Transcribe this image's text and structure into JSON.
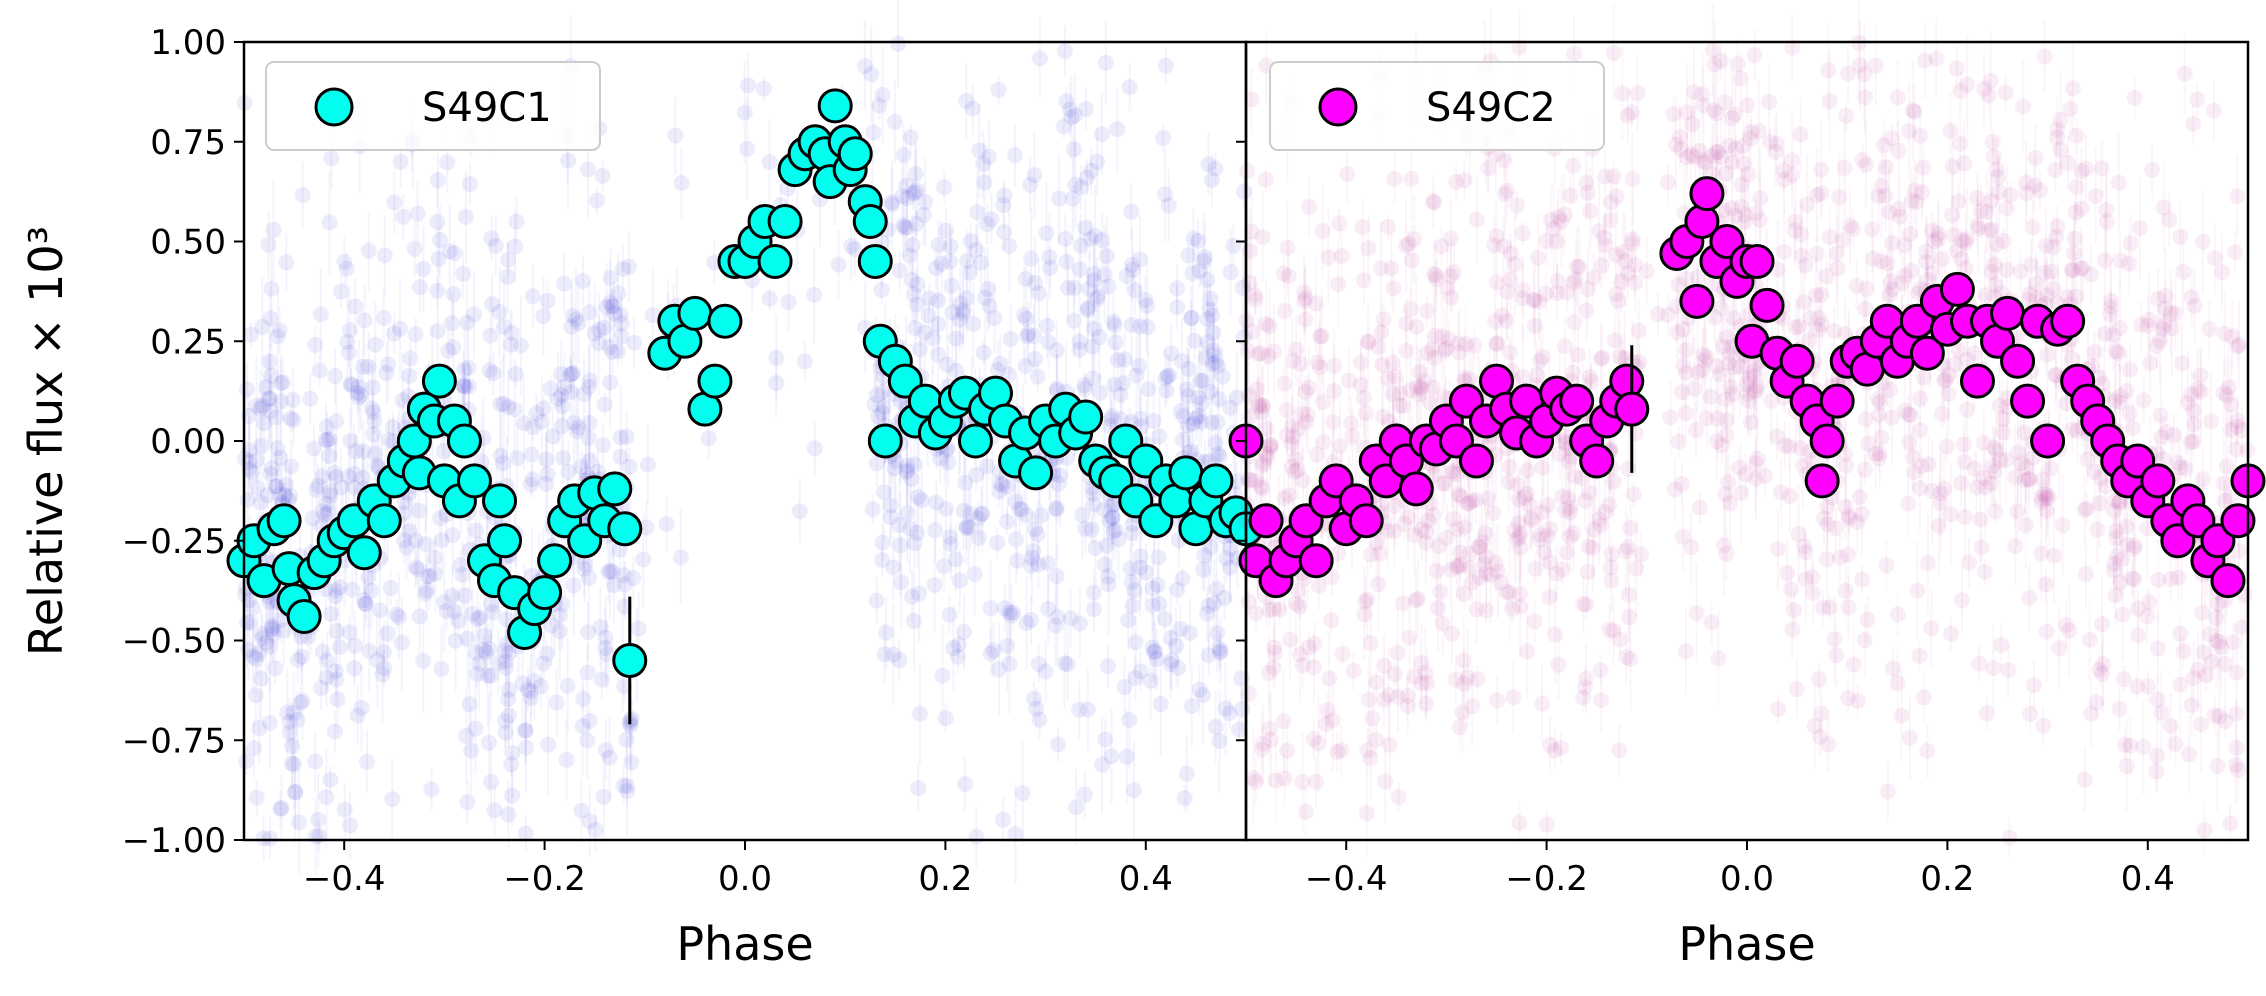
{
  "chart_data": [
    {
      "type": "scatter",
      "panel": "left",
      "xlabel": "Phase",
      "ylabel": "Relative flux × 10³",
      "xlim": [
        -0.5,
        0.5
      ],
      "ylim": [
        -1.0,
        1.0
      ],
      "xticks": [
        "−0.4",
        "−0.2",
        "0.0",
        "0.2",
        "0.4"
      ],
      "xtick_values": [
        -0.4,
        -0.2,
        0.0,
        0.2,
        0.4
      ],
      "yticks": [
        "−1.00",
        "−0.75",
        "−0.50",
        "−0.25",
        "0.00",
        "0.25",
        "0.50",
        "0.75",
        "1.00"
      ],
      "ytick_values": [
        -1.0,
        -0.75,
        -0.5,
        -0.25,
        0.0,
        0.25,
        0.5,
        0.75,
        1.0
      ],
      "legend": "top-left",
      "series": [
        {
          "name": "S49C1",
          "color": "#00ffee",
          "raw_color": "#2b2bd6",
          "x": [
            -0.5,
            -0.49,
            -0.48,
            -0.47,
            -0.46,
            -0.455,
            -0.45,
            -0.44,
            -0.43,
            -0.42,
            -0.41,
            -0.4,
            -0.39,
            -0.38,
            -0.37,
            -0.36,
            -0.35,
            -0.34,
            -0.33,
            -0.325,
            -0.32,
            -0.31,
            -0.305,
            -0.3,
            -0.29,
            -0.285,
            -0.28,
            -0.27,
            -0.26,
            -0.25,
            -0.245,
            -0.24,
            -0.23,
            -0.22,
            -0.21,
            -0.2,
            -0.19,
            -0.18,
            -0.17,
            -0.16,
            -0.15,
            -0.14,
            -0.13,
            -0.12,
            -0.115,
            -0.08,
            -0.07,
            -0.06,
            -0.05,
            -0.04,
            -0.03,
            -0.02,
            -0.01,
            0.0,
            0.01,
            0.02,
            0.03,
            0.04,
            0.05,
            0.06,
            0.07,
            0.08,
            0.085,
            0.09,
            0.1,
            0.105,
            0.11,
            0.12,
            0.125,
            0.13,
            0.135,
            0.14,
            0.15,
            0.16,
            0.17,
            0.18,
            0.19,
            0.2,
            0.21,
            0.22,
            0.23,
            0.24,
            0.25,
            0.26,
            0.27,
            0.28,
            0.29,
            0.3,
            0.31,
            0.32,
            0.33,
            0.34,
            0.35,
            0.36,
            0.37,
            0.38,
            0.39,
            0.4,
            0.41,
            0.42,
            0.43,
            0.44,
            0.45,
            0.46,
            0.47,
            0.48,
            0.49,
            0.5
          ],
          "y": [
            -0.3,
            -0.25,
            -0.35,
            -0.22,
            -0.2,
            -0.32,
            -0.4,
            -0.44,
            -0.33,
            -0.3,
            -0.25,
            -0.23,
            -0.2,
            -0.28,
            -0.15,
            -0.2,
            -0.1,
            -0.05,
            0.0,
            -0.08,
            0.08,
            0.05,
            0.15,
            -0.1,
            0.05,
            -0.15,
            0.0,
            -0.1,
            -0.3,
            -0.35,
            -0.15,
            -0.25,
            -0.38,
            -0.48,
            -0.42,
            -0.38,
            -0.3,
            -0.2,
            -0.15,
            -0.25,
            -0.13,
            -0.2,
            -0.12,
            -0.22,
            -0.55,
            0.22,
            0.3,
            0.25,
            0.32,
            0.08,
            0.15,
            0.3,
            0.45,
            0.45,
            0.5,
            0.55,
            0.45,
            0.55,
            0.68,
            0.72,
            0.75,
            0.72,
            0.65,
            0.84,
            0.75,
            0.68,
            0.72,
            0.6,
            0.55,
            0.45,
            0.25,
            0.0,
            0.2,
            0.15,
            0.05,
            0.1,
            0.02,
            0.05,
            0.1,
            0.12,
            0.0,
            0.08,
            0.12,
            0.05,
            -0.05,
            0.02,
            -0.08,
            0.05,
            0.0,
            0.08,
            0.02,
            0.06,
            -0.05,
            -0.08,
            -0.1,
            0.0,
            -0.15,
            -0.05,
            -0.2,
            -0.1,
            -0.15,
            -0.08,
            -0.22,
            -0.15,
            -0.1,
            -0.2,
            -0.18,
            -0.22
          ]
        }
      ]
    },
    {
      "type": "scatter",
      "panel": "right",
      "xlabel": "Phase",
      "xlim": [
        -0.5,
        0.5
      ],
      "ylim": [
        -1.0,
        1.0
      ],
      "xticks": [
        "−0.4",
        "−0.2",
        "0.0",
        "0.2",
        "0.4"
      ],
      "xtick_values": [
        -0.4,
        -0.2,
        0.0,
        0.2,
        0.4
      ],
      "legend": "top-left",
      "series": [
        {
          "name": "S49C2",
          "color": "#ff00ff",
          "raw_color": "#b8329e",
          "x": [
            -0.5,
            -0.49,
            -0.48,
            -0.47,
            -0.46,
            -0.45,
            -0.44,
            -0.43,
            -0.42,
            -0.41,
            -0.4,
            -0.39,
            -0.38,
            -0.37,
            -0.36,
            -0.35,
            -0.34,
            -0.33,
            -0.32,
            -0.31,
            -0.3,
            -0.29,
            -0.28,
            -0.27,
            -0.26,
            -0.25,
            -0.24,
            -0.23,
            -0.22,
            -0.21,
            -0.2,
            -0.19,
            -0.18,
            -0.17,
            -0.16,
            -0.15,
            -0.14,
            -0.13,
            -0.12,
            -0.115,
            -0.07,
            -0.06,
            -0.05,
            -0.045,
            -0.04,
            -0.03,
            -0.02,
            -0.01,
            0.0,
            0.005,
            0.01,
            0.02,
            0.03,
            0.04,
            0.05,
            0.06,
            0.07,
            0.075,
            0.08,
            0.09,
            0.1,
            0.11,
            0.12,
            0.13,
            0.14,
            0.15,
            0.16,
            0.17,
            0.18,
            0.19,
            0.2,
            0.21,
            0.22,
            0.23,
            0.24,
            0.25,
            0.26,
            0.27,
            0.28,
            0.29,
            0.3,
            0.31,
            0.32,
            0.33,
            0.34,
            0.35,
            0.36,
            0.37,
            0.38,
            0.39,
            0.4,
            0.41,
            0.42,
            0.43,
            0.44,
            0.45,
            0.46,
            0.47,
            0.48,
            0.49,
            0.5
          ],
          "y": [
            0.0,
            -0.3,
            -0.2,
            -0.35,
            -0.3,
            -0.25,
            -0.2,
            -0.3,
            -0.15,
            -0.1,
            -0.22,
            -0.15,
            -0.2,
            -0.05,
            -0.1,
            0.0,
            -0.05,
            -0.12,
            0.0,
            -0.02,
            0.05,
            0.0,
            0.1,
            -0.05,
            0.05,
            0.15,
            0.08,
            0.02,
            0.1,
            0.0,
            0.05,
            0.12,
            0.08,
            0.1,
            0.0,
            -0.05,
            0.05,
            0.1,
            0.15,
            0.08,
            0.47,
            0.5,
            0.35,
            0.55,
            0.62,
            0.45,
            0.5,
            0.4,
            0.45,
            0.25,
            0.45,
            0.34,
            0.22,
            0.15,
            0.2,
            0.1,
            0.05,
            -0.1,
            0.0,
            0.1,
            0.2,
            0.22,
            0.18,
            0.25,
            0.3,
            0.2,
            0.25,
            0.3,
            0.22,
            0.35,
            0.28,
            0.38,
            0.3,
            0.15,
            0.3,
            0.25,
            0.32,
            0.2,
            0.1,
            0.3,
            0.0,
            0.28,
            0.3,
            0.15,
            0.1,
            0.05,
            0.0,
            -0.05,
            -0.1,
            -0.05,
            -0.15,
            -0.1,
            -0.2,
            -0.25,
            -0.15,
            -0.2,
            -0.3,
            -0.25,
            -0.35,
            -0.2,
            -0.1
          ]
        }
      ]
    }
  ]
}
